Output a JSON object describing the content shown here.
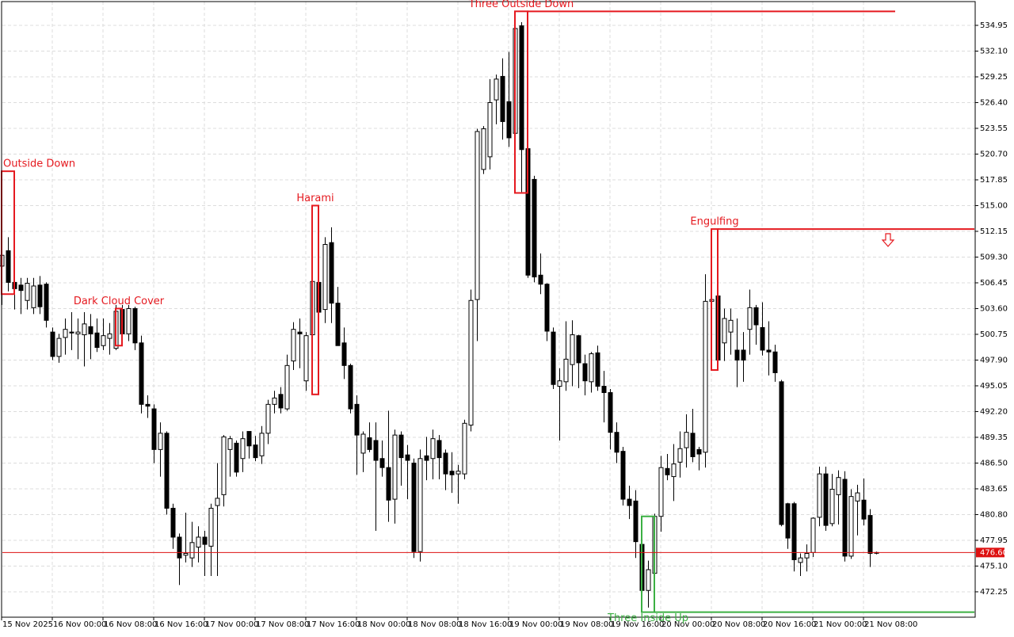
{
  "chart_data": {
    "type": "candlestick",
    "ylim": [
      469.44,
      537.58
    ],
    "yticks": [
      472.25,
      {
        "value": 475.1,
        "label": "475.10"
      },
      477.95,
      {
        "value": 480.8,
        "label": "480.80"
      },
      483.65,
      {
        "value": 486.5,
        "label": "486.50"
      },
      489.35,
      {
        "value": 492.2,
        "label": "492.20"
      },
      495.05,
      {
        "value": 497.9,
        "label": "497.90"
      },
      500.75,
      {
        "value": 503.6,
        "label": "503.60"
      },
      506.45,
      {
        "value": 509.3,
        "label": "509.30"
      },
      512.15,
      {
        "value": 515,
        "label": "515.00"
      },
      517.85,
      {
        "value": 520.7,
        "label": "520.70"
      },
      523.55,
      {
        "value": 526.4,
        "label": "526.40"
      },
      529.25,
      {
        "value": 532.1,
        "label": "532.10"
      },
      534.95
    ],
    "grid": true,
    "categories": [
      "15 Nov 2025",
      null,
      null,
      null,
      null,
      null,
      null,
      null,
      "16 Nov 00:00",
      null,
      null,
      null,
      null,
      null,
      null,
      null,
      "16 Nov 08:00",
      null,
      null,
      null,
      null,
      null,
      null,
      null,
      "16 Nov 16:00",
      null,
      null,
      null,
      null,
      null,
      null,
      null,
      "17 Nov 00:00",
      null,
      null,
      null,
      null,
      null,
      null,
      null,
      "17 Nov 08:00",
      null,
      null,
      null,
      null,
      null,
      null,
      null,
      "17 Nov 16:00",
      null,
      null,
      null,
      null,
      null,
      null,
      null,
      "18 Nov 00:00",
      null,
      null,
      null,
      null,
      null,
      null,
      null,
      "18 Nov 08:00",
      null,
      null,
      null,
      null,
      null,
      null,
      null,
      "18 Nov 16:00",
      null,
      null,
      null,
      null,
      null,
      null,
      null,
      "19 Nov 00:00",
      null,
      null,
      null,
      null,
      null,
      null,
      null,
      "19 Nov 08:00",
      null,
      null,
      null,
      null,
      null,
      null,
      null,
      "19 Nov 16:00",
      null,
      null,
      null,
      null,
      null,
      null,
      null,
      "20 Nov 00:00",
      null,
      null,
      null,
      null,
      null,
      null,
      null,
      "20 Nov 08:00",
      null,
      null,
      null,
      null,
      null,
      null,
      null,
      "20 Nov 16:00",
      null,
      null,
      null,
      null,
      null,
      null,
      null,
      "21 Nov 00:00",
      null,
      null,
      null,
      null,
      null,
      null,
      null,
      "21 Nov 08:00",
      null,
      null
    ],
    "ohlc": [
      [
        508.3,
        510,
        504,
        509.5
      ],
      [
        510,
        511.5,
        505.5,
        506.5
      ],
      [
        506.5,
        507.5,
        503.5,
        505.8
      ],
      [
        506.2,
        507,
        503,
        505.6
      ],
      [
        504.5,
        507,
        503.5,
        506.4
      ],
      [
        503.7,
        507,
        503,
        506.1
      ],
      [
        506.2,
        507.2,
        503,
        503.8
      ],
      [
        506.3,
        506.5,
        501.5,
        502.3
      ],
      [
        501,
        501.5,
        497.9,
        498.3
      ],
      [
        498.3,
        500.8,
        497.6,
        500.3
      ],
      [
        500.4,
        502.5,
        498.5,
        501.3
      ],
      [
        501,
        503.2,
        499,
        500.9
      ],
      [
        500.8,
        502.5,
        498,
        501
      ],
      [
        500.7,
        503.2,
        497.2,
        501.9
      ],
      [
        501.6,
        503,
        498,
        500.8
      ],
      [
        500.9,
        502.5,
        498.8,
        499.3
      ],
      [
        499.5,
        502.5,
        499,
        500.6
      ],
      [
        500.3,
        502,
        498.5,
        500.8
      ],
      [
        499.2,
        504,
        499,
        503.3
      ],
      [
        503.5,
        504,
        500,
        500.8
      ],
      [
        500.8,
        504,
        500,
        503.6
      ],
      [
        503.6,
        503.8,
        499,
        499.8
      ],
      [
        499.8,
        500.6,
        492,
        493
      ],
      [
        493,
        494,
        491.5,
        492.8
      ],
      [
        492.5,
        493,
        486.5,
        488
      ],
      [
        488,
        491,
        485,
        489.8
      ],
      [
        489.8,
        490,
        480.8,
        481.5
      ],
      [
        481.5,
        482,
        477,
        478.3
      ],
      [
        478.3,
        478.7,
        473,
        476
      ],
      [
        476.3,
        481,
        475.5,
        476.5
      ],
      [
        476,
        480,
        475,
        477.7
      ],
      [
        477.2,
        479.5,
        475.5,
        478.3
      ],
      [
        478.3,
        479,
        474,
        477.5
      ],
      [
        477.3,
        482,
        474,
        481.5
      ],
      [
        481.8,
        486.5,
        474,
        482.6
      ],
      [
        483,
        489.6,
        481.7,
        489.4
      ],
      [
        488,
        489.5,
        485,
        489.2
      ],
      [
        488.7,
        489,
        485,
        485.5
      ],
      [
        487,
        490,
        485.5,
        489.2
      ],
      [
        490,
        490,
        487,
        488.4
      ],
      [
        488.5,
        489.5,
        486.7,
        487.1
      ],
      [
        487.3,
        490.6,
        486.4,
        489.8
      ],
      [
        489.8,
        493.5,
        488.6,
        493
      ],
      [
        493,
        494.5,
        492,
        493.7
      ],
      [
        494.1,
        494.9,
        492,
        492.6
      ],
      [
        492.5,
        498.5,
        492.3,
        497.3
      ],
      [
        497.8,
        502.1,
        496.8,
        501.3
      ],
      [
        501,
        502.5,
        497,
        500.8
      ],
      [
        495.6,
        501,
        494.5,
        500.6
      ],
      [
        500.7,
        508.2,
        495,
        506.6
      ],
      [
        506.5,
        508.5,
        501,
        503.2
      ],
      [
        503.5,
        511.5,
        502,
        510.7
      ],
      [
        510.9,
        512.6,
        502,
        504.2
      ],
      [
        504.2,
        506,
        500,
        499.5
      ],
      [
        499.8,
        501.5,
        495.8,
        497.3
      ],
      [
        497.3,
        497.5,
        492,
        492.5
      ],
      [
        493,
        494,
        485.2,
        489.6
      ],
      [
        487.6,
        490,
        485.5,
        489.7
      ],
      [
        489.3,
        491,
        487.7,
        488
      ],
      [
        489,
        491,
        479,
        486.8
      ],
      [
        487,
        489,
        485,
        486
      ],
      [
        486,
        492.3,
        480,
        482.4
      ],
      [
        482.5,
        490.2,
        479.8,
        489.6
      ],
      [
        489.6,
        490,
        484,
        487.1
      ],
      [
        487.4,
        488.5,
        482.5,
        486.8
      ],
      [
        486.5,
        487,
        476,
        476.7
      ],
      [
        476.7,
        488,
        475.6,
        487
      ],
      [
        487.3,
        489.4,
        484.6,
        486.8
      ],
      [
        487,
        490.2,
        484.7,
        489.2
      ],
      [
        489,
        489.6,
        484.7,
        487.1
      ],
      [
        487.6,
        488,
        483.5,
        485.3
      ],
      [
        485.6,
        487.7,
        483.2,
        485.2
      ],
      [
        485.3,
        486.3,
        482,
        485.6
      ],
      [
        485.3,
        491.3,
        484.7,
        490.9
      ],
      [
        490.7,
        505.7,
        490,
        504.5
      ],
      [
        504.6,
        523.5,
        500,
        523.2
      ],
      [
        519,
        523.8,
        518.5,
        523.5
      ],
      [
        520.4,
        529,
        519,
        526.4
      ],
      [
        526.7,
        529.5,
        524,
        529
      ],
      [
        529.3,
        531.3,
        522.3,
        524.3
      ],
      [
        526.5,
        532,
        521.5,
        522.5
      ],
      [
        523,
        535.5,
        521,
        534.6
      ],
      [
        534.9,
        535.3,
        516.5,
        521.2
      ],
      [
        521.3,
        521.5,
        507,
        507.3
      ],
      [
        517.9,
        518.3,
        506.5,
        507.1
      ],
      [
        507.3,
        509.7,
        505.2,
        506.3
      ],
      [
        506.3,
        506.4,
        500,
        501.1
      ],
      [
        501,
        501.5,
        494.7,
        495.2
      ],
      [
        495,
        497,
        489,
        495.6
      ],
      [
        495.5,
        502.2,
        494.5,
        498
      ],
      [
        497.4,
        502.3,
        495,
        500.7
      ],
      [
        500.6,
        500.7,
        494.8,
        497.6
      ],
      [
        497.5,
        498.5,
        494,
        495.6
      ],
      [
        495.5,
        498.8,
        494.3,
        498.6
      ],
      [
        498.7,
        499.5,
        494.5,
        495
      ],
      [
        495,
        496.7,
        491,
        494.3
      ],
      [
        494.3,
        494.7,
        488,
        489.9
      ],
      [
        489.9,
        491,
        486.5,
        487.7
      ],
      [
        487.8,
        488.3,
        481.8,
        482.5
      ],
      [
        482.5,
        484,
        480.3,
        481.8
      ],
      [
        482.3,
        483.5,
        476,
        477.8
      ],
      [
        477.5,
        478.5,
        472,
        472.4
      ],
      [
        472.4,
        475.7,
        470.5,
        474.7
      ],
      [
        474.3,
        480.9,
        472.3,
        480.6
      ],
      [
        480.6,
        487.3,
        478.9,
        486
      ],
      [
        485.9,
        487.5,
        484.6,
        485.2
      ],
      [
        485,
        488.6,
        482.3,
        486.4
      ],
      [
        486.6,
        490,
        484.9,
        488.1
      ],
      [
        488.2,
        491.9,
        486,
        489.9
      ],
      [
        489.8,
        492.5,
        486.6,
        487.2
      ],
      [
        488,
        488.3,
        485.7,
        487.5
      ],
      [
        487.7,
        507.4,
        486,
        504.4
      ],
      [
        504.4,
        512.4,
        496.8,
        504.6
      ],
      [
        505,
        506,
        497.4,
        497.9
      ],
      [
        499.8,
        503.6,
        497.8,
        502.5
      ],
      [
        501,
        503.6,
        498.5,
        502.3
      ],
      [
        499,
        502.5,
        494.9,
        497.9
      ],
      [
        499,
        501,
        495.5,
        497.9
      ],
      [
        501.3,
        505.7,
        498.5,
        503.7
      ],
      [
        503.7,
        504,
        499.6,
        501.8
      ],
      [
        501.5,
        504.3,
        498.4,
        499
      ],
      [
        499,
        502.2,
        496.2,
        498.8
      ],
      [
        498.8,
        499.6,
        495.5,
        496.5
      ],
      [
        495.5,
        495.7,
        479.5,
        479.7
      ],
      [
        482,
        482.1,
        477,
        478.2
      ],
      [
        482,
        482.2,
        474.5,
        475.8
      ],
      [
        475.5,
        476.5,
        474,
        476
      ],
      [
        476,
        477.5,
        474.5,
        476.5
      ],
      [
        476.6,
        480.5,
        476.1,
        480.4
      ],
      [
        480.5,
        486.1,
        479.5,
        485.3
      ],
      [
        485.3,
        486.1,
        479,
        479.6
      ],
      [
        479.8,
        485.3,
        479.5,
        483.6
      ],
      [
        483,
        485.7,
        479.7,
        484.9
      ],
      [
        484.7,
        485.6,
        475.6,
        476.2
      ],
      [
        476.2,
        483.6,
        475.9,
        482.8
      ],
      [
        482.3,
        484.1,
        478.5,
        483.2
      ],
      [
        482.4,
        484.8,
        479.6,
        480.3
      ],
      [
        480.7,
        481.4,
        475,
        476.5
      ],
      [
        476.6,
        476.7,
        476.4,
        476.6
      ]
    ],
    "last_price": {
      "value": 476.6,
      "label": "476.60"
    },
    "patterns": [
      {
        "label": "Outside Down",
        "color": "#e5191f",
        "x": [
          0,
          2
        ],
        "range": [
          505.2,
          518.8
        ]
      },
      {
        "label": "Dark Cloud Cover",
        "color": "#e5191f",
        "x": [
          18,
          19
        ],
        "range": [
          499.5,
          503.6
        ]
      },
      {
        "label": "Harami",
        "color": "#e5191f",
        "x": [
          49,
          50
        ],
        "range": [
          494.1,
          515
        ]
      },
      {
        "label": "Three Outside Down",
        "color": "#e5191f",
        "x": [
          81,
          83
        ],
        "range": [
          516.4,
          536.5
        ],
        "line_end": 141
      },
      {
        "label": "Engulfing",
        "color": "#e5191f",
        "x": [
          112,
          113
        ],
        "range": [
          496.8,
          512.4
        ],
        "line_end": 153.5
      },
      {
        "label": "Three Inside Up",
        "color": "#3cb043",
        "x": [
          101,
          103
        ],
        "range": [
          470,
          480.6
        ],
        "line_end": 153.5
      }
    ]
  }
}
